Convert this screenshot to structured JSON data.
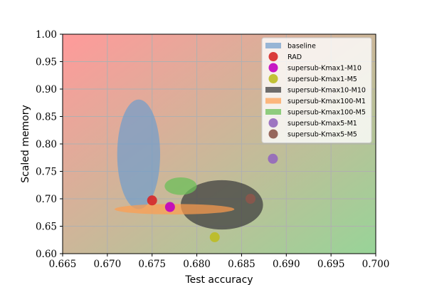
{
  "chart_data": {
    "type": "scatter",
    "title": "",
    "xlabel": "Test accuracy",
    "ylabel": "Scaled memory",
    "xlim": [
      0.665,
      0.7
    ],
    "ylim": [
      0.6,
      1.0
    ],
    "xticks": [
      "0.665",
      "0.670",
      "0.675",
      "0.680",
      "0.685",
      "0.690",
      "0.695",
      "0.700"
    ],
    "yticks": [
      "0.60",
      "0.65",
      "0.70",
      "0.75",
      "0.80",
      "0.85",
      "0.90",
      "0.95",
      "1.00"
    ],
    "grid": true,
    "legend_position": "top-right",
    "background_gradient": {
      "top_left": "#ff9a9a",
      "bottom_right": "#98d498"
    },
    "series": [
      {
        "name": "baseline",
        "shape": "ellipse",
        "color": "#6f9ccc",
        "opacity": 0.7,
        "x": 0.6735,
        "y": 0.781,
        "x_err": 0.0024,
        "y_err": 0.1
      },
      {
        "name": "RAD",
        "shape": "marker",
        "color": "#d62728",
        "x": 0.675,
        "y": 0.697
      },
      {
        "name": "supersub-Kmax1-M10",
        "shape": "marker",
        "color": "#c000c0",
        "x": 0.677,
        "y": 0.685
      },
      {
        "name": "supersub-Kmax1-M5",
        "shape": "marker",
        "color": "#bcbd22",
        "x": 0.682,
        "y": 0.63
      },
      {
        "name": "supersub-Kmax10-M10",
        "shape": "ellipse",
        "color": "#404040",
        "opacity": 0.75,
        "x": 0.6828,
        "y": 0.689,
        "x_err": 0.0046,
        "y_err": 0.045
      },
      {
        "name": "supersub-Kmax100-M1",
        "shape": "ellipse",
        "color": "#ff9d4d",
        "opacity": 0.7,
        "x": 0.6775,
        "y": 0.681,
        "x_err": 0.0067,
        "y_err": 0.0095
      },
      {
        "name": "supersub-Kmax100-M5",
        "shape": "ellipse",
        "color": "#6cbf5a",
        "opacity": 0.75,
        "x": 0.6782,
        "y": 0.723,
        "x_err": 0.0018,
        "y_err": 0.016
      },
      {
        "name": "supersub-Kmax5-M1",
        "shape": "marker",
        "color": "#9467bd",
        "x": 0.6885,
        "y": 0.773
      },
      {
        "name": "supersub-Kmax5-M5",
        "shape": "marker",
        "color": "#8c564b",
        "x": 0.686,
        "y": 0.7
      }
    ]
  }
}
